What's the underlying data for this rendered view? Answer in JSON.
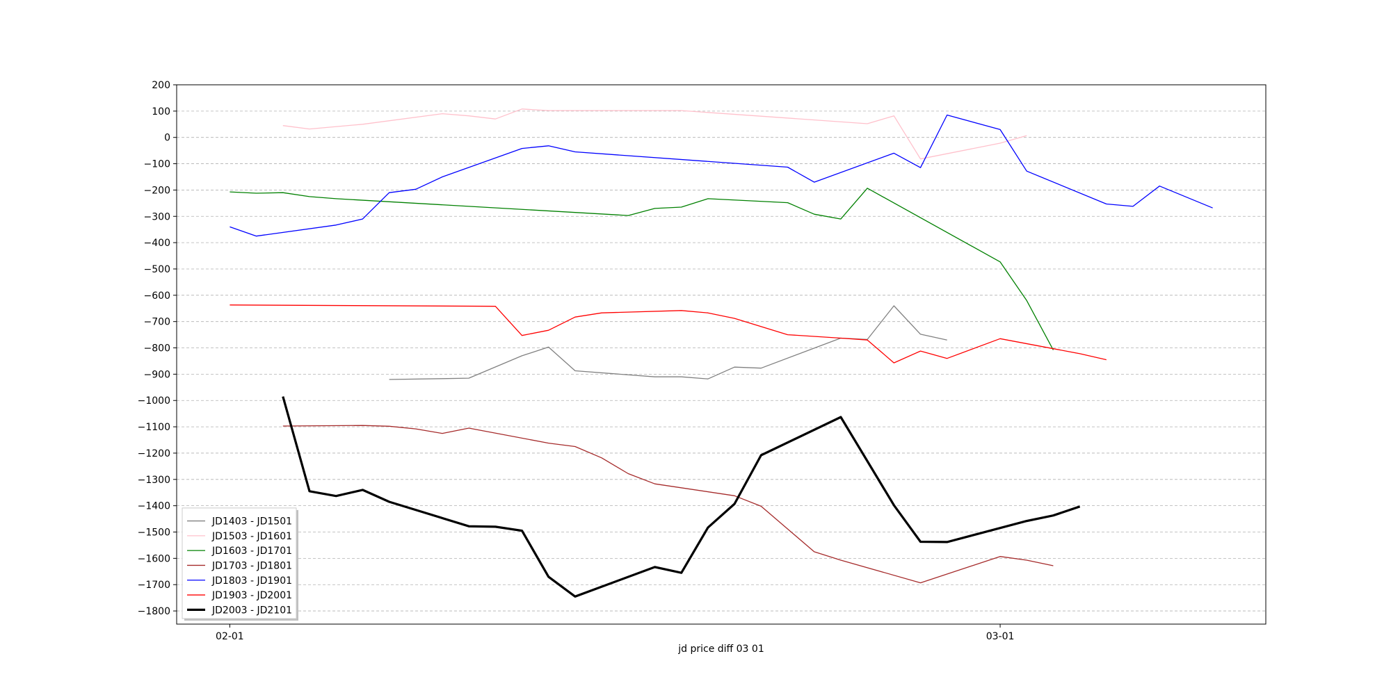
{
  "chart_data": {
    "type": "line",
    "title": "",
    "xlabel": "jd price diff 03 01",
    "ylabel": "",
    "x_unit": "date (MM-DD)",
    "xlim": [
      "01-30",
      "03-11"
    ],
    "ylim": [
      -1850,
      200
    ],
    "y_ticks": [
      200,
      100,
      0,
      -100,
      -200,
      -300,
      -400,
      -500,
      -600,
      -700,
      -800,
      -900,
      -1000,
      -1100,
      -1200,
      -1300,
      -1400,
      -1500,
      -1600,
      -1700,
      -1800
    ],
    "x_ticks": [
      "02-01",
      "03-01"
    ],
    "grid": "horizontal dashed",
    "legend_position": "lower-left",
    "series": [
      {
        "name": "JD1403 - JD1501",
        "color": "#808080",
        "linewidth": 1,
        "points": [
          {
            "x": "02-07",
            "y": -920
          },
          {
            "x": "02-09",
            "y": -917
          },
          {
            "x": "02-10",
            "y": -915
          },
          {
            "x": "02-12",
            "y": -830
          },
          {
            "x": "02-13",
            "y": -797
          },
          {
            "x": "02-14",
            "y": -887
          },
          {
            "x": "02-17",
            "y": -910
          },
          {
            "x": "02-18",
            "y": -910
          },
          {
            "x": "02-19",
            "y": -918
          },
          {
            "x": "02-20",
            "y": -873
          },
          {
            "x": "02-21",
            "y": -877
          },
          {
            "x": "02-24",
            "y": -763
          },
          {
            "x": "02-25",
            "y": -768
          },
          {
            "x": "02-26",
            "y": -640
          },
          {
            "x": "02-27",
            "y": -748
          },
          {
            "x": "02-28",
            "y": -770
          }
        ]
      },
      {
        "name": "JD1503 - JD1601",
        "color": "#ffc0cb",
        "linewidth": 1,
        "points": [
          {
            "x": "02-03",
            "y": 45
          },
          {
            "x": "02-04",
            "y": 32
          },
          {
            "x": "02-06",
            "y": 50
          },
          {
            "x": "02-09",
            "y": 90
          },
          {
            "x": "02-10",
            "y": 82
          },
          {
            "x": "02-11",
            "y": 70
          },
          {
            "x": "02-12",
            "y": 108
          },
          {
            "x": "02-13",
            "y": 102
          },
          {
            "x": "02-18",
            "y": 102
          },
          {
            "x": "02-25",
            "y": 52
          },
          {
            "x": "02-26",
            "y": 82
          },
          {
            "x": "02-27",
            "y": -82
          },
          {
            "x": "03-01",
            "y": -22
          },
          {
            "x": "03-02",
            "y": 7
          }
        ]
      },
      {
        "name": "JD1603 - JD1701",
        "color": "#008000",
        "linewidth": 1,
        "points": [
          {
            "x": "02-01",
            "y": -207
          },
          {
            "x": "02-02",
            "y": -212
          },
          {
            "x": "02-03",
            "y": -210
          },
          {
            "x": "02-04",
            "y": -225
          },
          {
            "x": "02-05",
            "y": -233
          },
          {
            "x": "02-16",
            "y": -297
          },
          {
            "x": "02-17",
            "y": -270
          },
          {
            "x": "02-18",
            "y": -265
          },
          {
            "x": "02-19",
            "y": -233
          },
          {
            "x": "02-22",
            "y": -248
          },
          {
            "x": "02-23",
            "y": -292
          },
          {
            "x": "02-24",
            "y": -310
          },
          {
            "x": "02-25",
            "y": -193
          },
          {
            "x": "03-01",
            "y": -473
          },
          {
            "x": "03-02",
            "y": -620
          },
          {
            "x": "03-03",
            "y": -808
          }
        ]
      },
      {
        "name": "JD1703 - JD1801",
        "color": "#a52a2a",
        "linewidth": 1,
        "points": [
          {
            "x": "02-03",
            "y": -1097
          },
          {
            "x": "02-06",
            "y": -1095
          },
          {
            "x": "02-07",
            "y": -1098
          },
          {
            "x": "02-08",
            "y": -1108
          },
          {
            "x": "02-09",
            "y": -1125
          },
          {
            "x": "02-10",
            "y": -1105
          },
          {
            "x": "02-13",
            "y": -1162
          },
          {
            "x": "02-14",
            "y": -1175
          },
          {
            "x": "02-15",
            "y": -1218
          },
          {
            "x": "02-16",
            "y": -1278
          },
          {
            "x": "02-17",
            "y": -1317
          },
          {
            "x": "02-20",
            "y": -1362
          },
          {
            "x": "02-21",
            "y": -1402
          },
          {
            "x": "02-23",
            "y": -1575
          },
          {
            "x": "02-24",
            "y": -1607
          },
          {
            "x": "02-27",
            "y": -1693
          },
          {
            "x": "03-01",
            "y": -1593
          },
          {
            "x": "03-02",
            "y": -1607
          },
          {
            "x": "03-03",
            "y": -1628
          }
        ]
      },
      {
        "name": "JD1803 - JD1901",
        "color": "#0000ff",
        "linewidth": 1,
        "points": [
          {
            "x": "02-01",
            "y": -340
          },
          {
            "x": "02-02",
            "y": -375
          },
          {
            "x": "02-05",
            "y": -333
          },
          {
            "x": "02-06",
            "y": -310
          },
          {
            "x": "02-07",
            "y": -210
          },
          {
            "x": "02-08",
            "y": -197
          },
          {
            "x": "02-09",
            "y": -150
          },
          {
            "x": "02-12",
            "y": -42
          },
          {
            "x": "02-13",
            "y": -32
          },
          {
            "x": "02-14",
            "y": -55
          },
          {
            "x": "02-22",
            "y": -113
          },
          {
            "x": "02-23",
            "y": -170
          },
          {
            "x": "02-26",
            "y": -60
          },
          {
            "x": "02-27",
            "y": -115
          },
          {
            "x": "02-28",
            "y": 85
          },
          {
            "x": "03-01",
            "y": 30
          },
          {
            "x": "03-02",
            "y": -128
          },
          {
            "x": "03-05",
            "y": -253
          },
          {
            "x": "03-06",
            "y": -262
          },
          {
            "x": "03-07",
            "y": -185
          },
          {
            "x": "03-09",
            "y": -268
          }
        ]
      },
      {
        "name": "JD1903 - JD2001",
        "color": "#ff0000",
        "linewidth": 1,
        "points": [
          {
            "x": "02-01",
            "y": -637
          },
          {
            "x": "02-11",
            "y": -642
          },
          {
            "x": "02-12",
            "y": -753
          },
          {
            "x": "02-13",
            "y": -733
          },
          {
            "x": "02-14",
            "y": -683
          },
          {
            "x": "02-15",
            "y": -667
          },
          {
            "x": "02-18",
            "y": -658
          },
          {
            "x": "02-19",
            "y": -667
          },
          {
            "x": "02-20",
            "y": -688
          },
          {
            "x": "02-22",
            "y": -750
          },
          {
            "x": "02-24",
            "y": -763
          },
          {
            "x": "02-25",
            "y": -770
          },
          {
            "x": "02-26",
            "y": -857
          },
          {
            "x": "02-27",
            "y": -812
          },
          {
            "x": "02-28",
            "y": -840
          },
          {
            "x": "03-01",
            "y": -765
          },
          {
            "x": "03-03",
            "y": -803
          },
          {
            "x": "03-04",
            "y": -822
          },
          {
            "x": "03-05",
            "y": -845
          }
        ]
      },
      {
        "name": "JD2003 - JD2101",
        "color": "#000000",
        "linewidth": 2.5,
        "points": [
          {
            "x": "02-03",
            "y": -985
          },
          {
            "x": "02-04",
            "y": -1345
          },
          {
            "x": "02-05",
            "y": -1363
          },
          {
            "x": "02-06",
            "y": -1340
          },
          {
            "x": "02-07",
            "y": -1385
          },
          {
            "x": "02-10",
            "y": -1478
          },
          {
            "x": "02-11",
            "y": -1480
          },
          {
            "x": "02-12",
            "y": -1495
          },
          {
            "x": "02-13",
            "y": -1670
          },
          {
            "x": "02-14",
            "y": -1745
          },
          {
            "x": "02-17",
            "y": -1633
          },
          {
            "x": "02-18",
            "y": -1655
          },
          {
            "x": "02-19",
            "y": -1483
          },
          {
            "x": "02-20",
            "y": -1393
          },
          {
            "x": "02-21",
            "y": -1208
          },
          {
            "x": "02-24",
            "y": -1063
          },
          {
            "x": "02-26",
            "y": -1398
          },
          {
            "x": "02-27",
            "y": -1537
          },
          {
            "x": "02-28",
            "y": -1538
          },
          {
            "x": "03-02",
            "y": -1458
          },
          {
            "x": "03-03",
            "y": -1437
          },
          {
            "x": "03-04",
            "y": -1403
          }
        ]
      }
    ]
  }
}
